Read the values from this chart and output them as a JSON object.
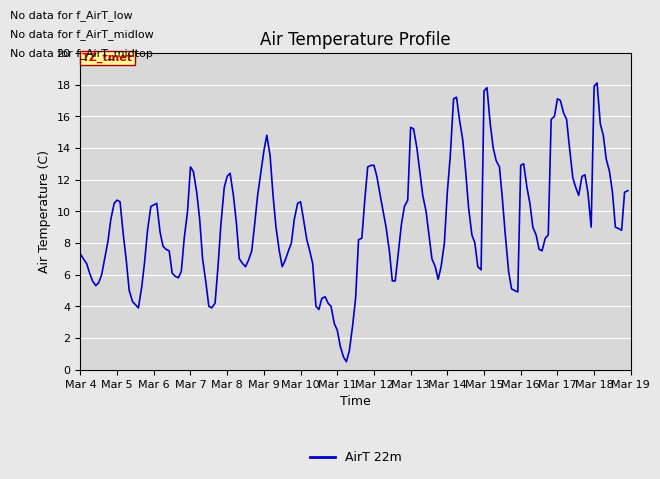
{
  "title": "Air Temperature Profile",
  "xlabel": "Time",
  "ylabel": "Air Temperature (C)",
  "ylim": [
    0,
    20
  ],
  "yticks": [
    0,
    2,
    4,
    6,
    8,
    10,
    12,
    14,
    16,
    18,
    20
  ],
  "xtick_labels": [
    "Mar 4",
    "Mar 5",
    "Mar 6",
    "Mar 7",
    "Mar 8",
    "Mar 9",
    "Mar 10",
    "Mar 11",
    "Mar 12",
    "Mar 13",
    "Mar 14",
    "Mar 15",
    "Mar 16",
    "Mar 17",
    "Mar 18",
    "Mar 19"
  ],
  "line_color": "#0000cc",
  "line_label": "AirT 22m",
  "background_color": "#e8e8e8",
  "plot_bg_color": "#d8d8d8",
  "grid_color": "#ffffff",
  "no_data_texts": [
    "No data for f_AirT_low",
    "No data for f_AirT_midlow",
    "No data for f_AirT_midtop"
  ],
  "annotation_text": "TZ_tmet",
  "annotation_color": "#cc0000",
  "annotation_bg": "#ffff99",
  "title_fontsize": 12,
  "axis_label_fontsize": 9,
  "tick_fontsize": 8,
  "data_x_days": [
    4.0,
    4.08,
    4.17,
    4.25,
    4.33,
    4.42,
    4.5,
    4.58,
    4.67,
    4.75,
    4.83,
    4.92,
    5.0,
    5.08,
    5.17,
    5.25,
    5.33,
    5.42,
    5.5,
    5.58,
    5.67,
    5.75,
    5.83,
    5.92,
    6.0,
    6.08,
    6.17,
    6.25,
    6.33,
    6.42,
    6.5,
    6.58,
    6.67,
    6.75,
    6.83,
    6.92,
    7.0,
    7.08,
    7.17,
    7.25,
    7.33,
    7.42,
    7.5,
    7.58,
    7.67,
    7.75,
    7.83,
    7.92,
    8.0,
    8.08,
    8.17,
    8.25,
    8.33,
    8.42,
    8.5,
    8.58,
    8.67,
    8.75,
    8.83,
    8.92,
    9.0,
    9.08,
    9.17,
    9.25,
    9.33,
    9.42,
    9.5,
    9.58,
    9.67,
    9.75,
    9.83,
    9.92,
    10.0,
    10.08,
    10.17,
    10.25,
    10.33,
    10.42,
    10.5,
    10.58,
    10.67,
    10.75,
    10.83,
    10.92,
    11.0,
    11.08,
    11.17,
    11.25,
    11.33,
    11.42,
    11.5,
    11.58,
    11.67,
    11.75,
    11.83,
    11.92,
    12.0,
    12.08,
    12.17,
    12.25,
    12.33,
    12.42,
    12.5,
    12.58,
    12.67,
    12.75,
    12.83,
    12.92,
    13.0,
    13.08,
    13.17,
    13.25,
    13.33,
    13.42,
    13.5,
    13.58,
    13.67,
    13.75,
    13.83,
    13.92,
    14.0,
    14.08,
    14.17,
    14.25,
    14.33,
    14.42,
    14.5,
    14.58,
    14.67,
    14.75,
    14.83,
    14.92,
    15.0,
    15.08,
    15.17,
    15.25,
    15.33,
    15.42,
    15.5,
    15.58,
    15.67,
    15.75,
    15.83,
    15.92,
    16.0,
    16.08,
    16.17,
    16.25,
    16.33,
    16.42,
    16.5,
    16.58,
    16.67,
    16.75,
    16.83,
    16.92,
    17.0,
    17.08,
    17.17,
    17.25,
    17.33,
    17.42,
    17.5,
    17.58,
    17.67,
    17.75,
    17.83,
    17.92,
    18.0,
    18.08,
    18.17,
    18.25,
    18.33,
    18.42,
    18.5,
    18.58,
    18.67,
    18.75,
    18.83,
    18.92
  ],
  "data_y": [
    7.3,
    7.0,
    6.7,
    6.1,
    5.6,
    5.3,
    5.5,
    6.0,
    7.1,
    8.1,
    9.5,
    10.5,
    10.7,
    10.6,
    8.5,
    6.9,
    5.0,
    4.3,
    4.1,
    3.9,
    5.2,
    6.8,
    8.8,
    10.3,
    10.4,
    10.5,
    8.7,
    7.8,
    7.6,
    7.5,
    6.1,
    5.9,
    5.8,
    6.2,
    8.3,
    10.0,
    12.8,
    12.5,
    11.2,
    9.5,
    7.0,
    5.5,
    4.0,
    3.9,
    4.2,
    6.5,
    9.2,
    11.5,
    12.2,
    12.4,
    11.0,
    9.3,
    7.0,
    6.7,
    6.5,
    6.9,
    7.5,
    9.2,
    11.0,
    12.5,
    13.8,
    14.8,
    13.5,
    11.0,
    9.0,
    7.5,
    6.5,
    6.9,
    7.5,
    8.0,
    9.5,
    10.5,
    10.6,
    9.5,
    8.2,
    7.5,
    6.7,
    4.0,
    3.8,
    4.5,
    4.6,
    4.2,
    4.0,
    2.9,
    2.5,
    1.5,
    0.8,
    0.5,
    1.2,
    2.8,
    4.5,
    8.2,
    8.3,
    10.7,
    12.8,
    12.9,
    12.9,
    12.2,
    11.0,
    10.0,
    9.0,
    7.5,
    5.6,
    5.6,
    7.5,
    9.2,
    10.3,
    10.7,
    15.3,
    15.2,
    14.0,
    12.5,
    11.0,
    10.0,
    8.5,
    7.0,
    6.5,
    5.7,
    6.5,
    8.0,
    11.2,
    13.5,
    17.1,
    17.2,
    15.8,
    14.5,
    12.5,
    10.2,
    8.5,
    8.0,
    6.5,
    6.3,
    17.6,
    17.8,
    15.5,
    14.0,
    13.2,
    12.8,
    10.8,
    8.5,
    6.2,
    5.1,
    5.0,
    4.9,
    12.9,
    13.0,
    11.5,
    10.5,
    9.0,
    8.5,
    7.6,
    7.5,
    8.3,
    8.5,
    15.8,
    16.0,
    17.1,
    17.0,
    16.2,
    15.8,
    14.0,
    12.1,
    11.5,
    11.0,
    12.2,
    12.3,
    11.2,
    9.0,
    17.9,
    18.1,
    15.5,
    14.8,
    13.3,
    12.5,
    11.2,
    9.0,
    8.9,
    8.8,
    11.2,
    11.3
  ]
}
